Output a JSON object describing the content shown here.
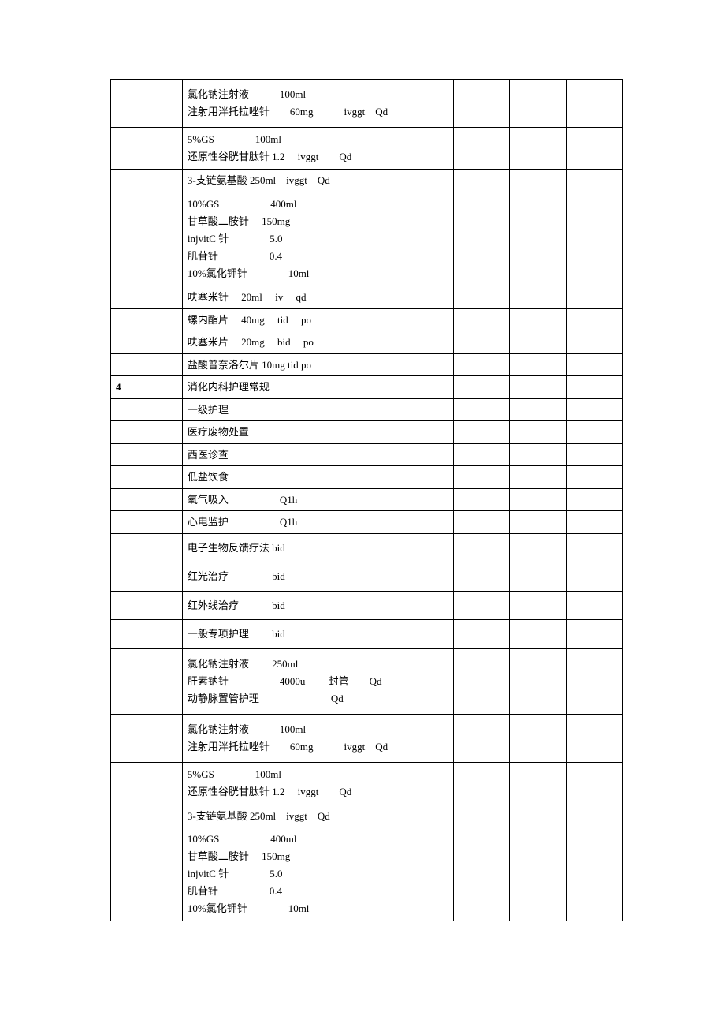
{
  "table": {
    "border_color": "#000000",
    "background_color": "#ffffff",
    "font_family": "SimSun",
    "base_font_size": 13,
    "col_widths_pct": [
      14,
      53,
      11,
      11,
      11
    ],
    "rows": [
      {
        "c1": "",
        "c2": "氯化钠注射液　　　100ml\n注射用泮托拉唑针　　60mg　　　ivggt　Qd",
        "c3": "",
        "c4": "",
        "c5": "",
        "tall": true,
        "multi": true
      },
      {
        "c1": "",
        "c2": "5%GS　　　　100ml\n还原性谷胱甘肽针 1.2　 ivggt　　Qd",
        "c3": "",
        "c4": "",
        "c5": "",
        "multi": true
      },
      {
        "c1": "",
        "c2": "3-支链氨基酸 250ml　ivggt　Qd",
        "c3": "",
        "c4": "",
        "c5": ""
      },
      {
        "c1": "",
        "c2": "10%GS　　　　　400ml\n甘草酸二胺针　 150mg\ninjvitC 针　　　　5.0\n肌苷针　　　　　0.4\n10%氯化钾针　　　　10ml",
        "c3": "",
        "c4": "",
        "c5": "",
        "multi": true
      },
      {
        "c1": "",
        "c2": "呋塞米针　 20ml　 iv　 qd",
        "c3": "",
        "c4": "",
        "c5": ""
      },
      {
        "c1": "",
        "c2": "螺内酯片　 40mg　 tid　 po",
        "c3": "",
        "c4": "",
        "c5": ""
      },
      {
        "c1": "",
        "c2": "呋塞米片　 20mg　 bid　 po",
        "c3": "",
        "c4": "",
        "c5": ""
      },
      {
        "c1": "",
        "c2": "盐酸普奈洛尔片 10mg tid po",
        "c3": "",
        "c4": "",
        "c5": ""
      },
      {
        "c1": "4",
        "c1_bold": true,
        "c2": "消化内科护理常规",
        "c3": "",
        "c4": "",
        "c5": ""
      },
      {
        "c1": "",
        "c2": "一级护理",
        "c3": "",
        "c4": "",
        "c5": ""
      },
      {
        "c1": "",
        "c2": "医疗废物处置",
        "c3": "",
        "c4": "",
        "c5": ""
      },
      {
        "c1": "",
        "c2": "西医诊查",
        "c3": "",
        "c4": "",
        "c5": ""
      },
      {
        "c1": "",
        "c2": "低盐饮食",
        "c3": "",
        "c4": "",
        "c5": ""
      },
      {
        "c1": "",
        "c2": "氧气吸入　　　　　Q1h",
        "c3": "",
        "c4": "",
        "c5": ""
      },
      {
        "c1": "",
        "c2": "心电监护　　　　　Q1h",
        "c3": "",
        "c4": "",
        "c5": ""
      },
      {
        "c1": "",
        "c2": "电子生物反馈疗法 bid",
        "c3": "",
        "c4": "",
        "c5": "",
        "tall": true
      },
      {
        "c1": "",
        "c2": "红光治疗　　　　 bid",
        "c3": "",
        "c4": "",
        "c5": "",
        "tall": true
      },
      {
        "c1": "",
        "c2": "红外线治疗　　　 bid",
        "c3": "",
        "c4": "",
        "c5": "",
        "tall": true
      },
      {
        "c1": "",
        "c2": "一般专项护理　　 bid",
        "c3": "",
        "c4": "",
        "c5": "",
        "tall": true
      },
      {
        "c1": "",
        "c2": "氯化钠注射液　　 250ml\n肝素钠针　　　　　4000u　　 封管　　Qd\n动静脉置管护理　　　　　　　Qd",
        "c3": "",
        "c4": "",
        "c5": "",
        "tall": true,
        "multi": true
      },
      {
        "c1": "",
        "c2": "氯化钠注射液　　　100ml\n注射用泮托拉唑针　　60mg　　　ivggt　Qd",
        "c3": "",
        "c4": "",
        "c5": "",
        "tall": true,
        "multi": true
      },
      {
        "c1": "",
        "c2": "5%GS　　　　100ml\n还原性谷胱甘肽针 1.2　 ivggt　　Qd",
        "c3": "",
        "c4": "",
        "c5": "",
        "multi": true
      },
      {
        "c1": "",
        "c2": "3-支链氨基酸 250ml　ivggt　Qd",
        "c3": "",
        "c4": "",
        "c5": ""
      },
      {
        "c1": "",
        "c2": "10%GS　　　　　400ml\n甘草酸二胺针　 150mg\ninjvitC 针　　　　5.0\n肌苷针　　　　　0.4\n10%氯化钾针　　　　10ml",
        "c3": "",
        "c4": "",
        "c5": "",
        "multi": true
      }
    ]
  }
}
